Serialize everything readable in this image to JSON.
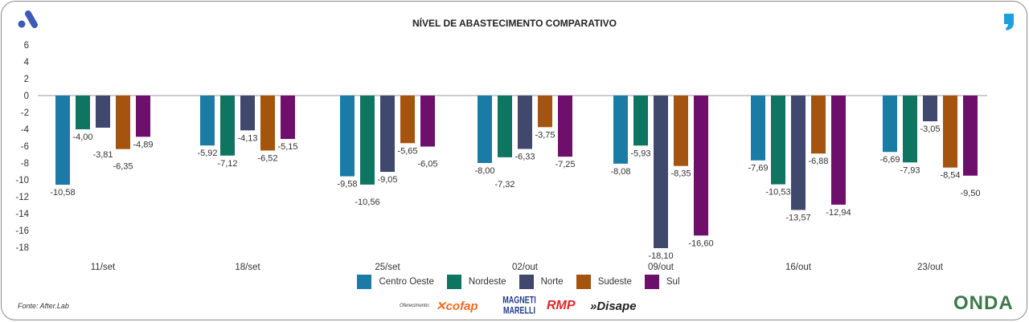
{
  "title": "NÍVEL DE ABASTECIMENTO COMPARATIVO",
  "footer": {
    "source": "Fonte: After.Lab",
    "sponsor_label": "Oferecimento:",
    "sponsors": [
      "cofap",
      "MAGNETI MARELLI",
      "RMP",
      "»Disape"
    ],
    "brand": "ONDA"
  },
  "chart_data": {
    "type": "bar",
    "title": "NÍVEL DE ABASTECIMENTO COMPARATIVO",
    "categories": [
      "11/set",
      "18/set",
      "25/set",
      "02/out",
      "09/out",
      "16/out",
      "23/out"
    ],
    "series": [
      {
        "name": "Centro Oeste",
        "color": "#1a7ba5",
        "values": [
          -10.58,
          -5.92,
          -9.58,
          -8.0,
          -8.08,
          -7.69,
          -6.69
        ],
        "labels": [
          "-10,58",
          "-5,92",
          "-9,58",
          "-8,00",
          "-8,08",
          "-7,69",
          "-6,69"
        ]
      },
      {
        "name": "Nordeste",
        "color": "#0d7560",
        "values": [
          -4.0,
          -7.12,
          -10.56,
          -7.32,
          -5.93,
          -10.53,
          -7.93
        ],
        "labels": [
          "-4,00",
          "-7,12",
          "-10,56",
          "-7,32",
          "-5,93",
          "-10,53",
          "-7,93"
        ]
      },
      {
        "name": "Norte",
        "color": "#40486e",
        "values": [
          -3.81,
          -4.13,
          -9.05,
          -6.33,
          -18.1,
          -13.57,
          -3.05
        ],
        "labels": [
          "-3,81",
          "-4,13",
          "-9,05",
          "-6,33",
          "-18,10",
          "-13,57",
          "-3,05"
        ]
      },
      {
        "name": "Sudeste",
        "color": "#a4540f",
        "values": [
          -6.35,
          -6.52,
          -5.65,
          -3.75,
          -8.35,
          -6.88,
          -8.54
        ],
        "labels": [
          "-6,35",
          "-6,52",
          "-5,65",
          "-3,75",
          "-8,35",
          "-6,88",
          "-8,54"
        ]
      },
      {
        "name": "Sul",
        "color": "#6f0f6c",
        "values": [
          -4.89,
          -5.15,
          -6.05,
          -7.25,
          -16.6,
          -12.94,
          -9.5
        ],
        "labels": [
          "-4,89",
          "-5,15",
          "-6,05",
          "-7,25",
          "-16,60",
          "-12,94",
          "-9,50"
        ]
      }
    ],
    "yticks": [
      "6",
      "4",
      "2",
      "0",
      "-2",
      "-4",
      "-6",
      "-8",
      "-10",
      "-12",
      "-14",
      "-16",
      "-18"
    ],
    "ylim": [
      -18,
      6
    ],
    "xlabel": "",
    "ylabel": "",
    "grid": false,
    "legend": "bottom"
  }
}
